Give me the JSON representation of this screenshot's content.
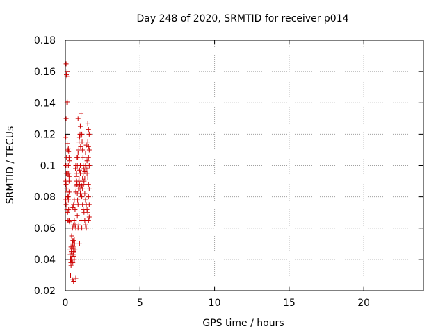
{
  "chart_data": {
    "type": "scatter",
    "title": "Day 248 of 2020, SRMTID for receiver p014",
    "xlabel": "GPS time / hours",
    "ylabel": "SRMTID / TECUs",
    "xlim": [
      0,
      24
    ],
    "ylim": [
      0.02,
      0.18
    ],
    "xticks": [
      0,
      5,
      10,
      15,
      20
    ],
    "xtick_labels": [
      "0",
      "5",
      "10",
      "15",
      "20"
    ],
    "yticks": [
      0.02,
      0.04,
      0.06,
      0.08,
      0.1,
      0.12,
      0.14,
      0.16,
      0.18
    ],
    "ytick_labels": [
      "0.02",
      "0.04",
      "0.06",
      "0.08",
      "0.1",
      "0.12",
      "0.14",
      "0.16",
      "0.18"
    ],
    "grid": true,
    "marker": "+",
    "series": [
      {
        "name": "p014",
        "color": "#cc0000",
        "points": [
          [
            0.05,
            0.165
          ],
          [
            0.07,
            0.158
          ],
          [
            0.1,
            0.157
          ],
          [
            0.11,
            0.16
          ],
          [
            0.12,
            0.141
          ],
          [
            0.1,
            0.14
          ],
          [
            0.14,
            0.14
          ],
          [
            0.05,
            0.13
          ],
          [
            0.03,
            0.118
          ],
          [
            0.08,
            0.105
          ],
          [
            0.12,
            0.114
          ],
          [
            0.14,
            0.11
          ],
          [
            0.2,
            0.111
          ],
          [
            0.22,
            0.109
          ],
          [
            0.25,
            0.105
          ],
          [
            0.28,
            0.103
          ],
          [
            0.04,
            0.1
          ],
          [
            0.06,
            0.095
          ],
          [
            0.1,
            0.095
          ],
          [
            0.15,
            0.095
          ],
          [
            0.2,
            0.1
          ],
          [
            0.22,
            0.095
          ],
          [
            0.25,
            0.093
          ],
          [
            0.03,
            0.09
          ],
          [
            0.05,
            0.088
          ],
          [
            0.08,
            0.085
          ],
          [
            0.12,
            0.083
          ],
          [
            0.15,
            0.08
          ],
          [
            0.2,
            0.08
          ],
          [
            0.25,
            0.09
          ],
          [
            0.03,
            0.078
          ],
          [
            0.05,
            0.075
          ],
          [
            0.1,
            0.072
          ],
          [
            0.12,
            0.07
          ],
          [
            0.15,
            0.07
          ],
          [
            0.2,
            0.078
          ],
          [
            0.25,
            0.083
          ],
          [
            0.22,
            0.072
          ],
          [
            0.18,
            0.065
          ],
          [
            0.25,
            0.065
          ],
          [
            0.28,
            0.064
          ],
          [
            0.3,
            0.046
          ],
          [
            0.32,
            0.043
          ],
          [
            0.35,
            0.04
          ],
          [
            0.37,
            0.038
          ],
          [
            0.38,
            0.036
          ],
          [
            0.4,
            0.04
          ],
          [
            0.42,
            0.044
          ],
          [
            0.45,
            0.047
          ],
          [
            0.48,
            0.05
          ],
          [
            0.5,
            0.052
          ],
          [
            0.52,
            0.048
          ],
          [
            0.55,
            0.045
          ],
          [
            0.58,
            0.042
          ],
          [
            0.6,
            0.04
          ],
          [
            0.45,
            0.042
          ],
          [
            0.4,
            0.045
          ],
          [
            0.38,
            0.048
          ],
          [
            0.5,
            0.038
          ],
          [
            0.52,
            0.043
          ],
          [
            0.55,
            0.052
          ],
          [
            0.6,
            0.053
          ],
          [
            0.62,
            0.05
          ],
          [
            0.65,
            0.046
          ],
          [
            0.42,
            0.055
          ],
          [
            0.48,
            0.06
          ],
          [
            0.55,
            0.062
          ],
          [
            0.6,
            0.065
          ],
          [
            0.65,
            0.062
          ],
          [
            0.7,
            0.06
          ],
          [
            0.35,
            0.03
          ],
          [
            0.5,
            0.027
          ],
          [
            0.55,
            0.026
          ],
          [
            0.7,
            0.028
          ],
          [
            0.5,
            0.073
          ],
          [
            0.55,
            0.075
          ],
          [
            0.6,
            0.078
          ],
          [
            0.65,
            0.072
          ],
          [
            0.7,
            0.083
          ],
          [
            0.72,
            0.087
          ],
          [
            0.75,
            0.09
          ],
          [
            0.78,
            0.088
          ],
          [
            0.8,
            0.082
          ],
          [
            0.82,
            0.078
          ],
          [
            0.85,
            0.075
          ],
          [
            0.88,
            0.085
          ],
          [
            0.9,
            0.09
          ],
          [
            0.92,
            0.092
          ],
          [
            0.95,
            0.088
          ],
          [
            0.98,
            0.085
          ],
          [
            1.0,
            0.082
          ],
          [
            0.75,
            0.095
          ],
          [
            0.8,
            0.1
          ],
          [
            0.82,
            0.105
          ],
          [
            0.85,
            0.108
          ],
          [
            0.9,
            0.11
          ],
          [
            0.92,
            0.115
          ],
          [
            0.95,
            0.118
          ],
          [
            0.98,
            0.12
          ],
          [
            1.0,
            0.125
          ],
          [
            1.02,
            0.112
          ],
          [
            1.05,
            0.11
          ],
          [
            0.85,
            0.13
          ],
          [
            1.05,
            0.133
          ],
          [
            1.1,
            0.12
          ],
          [
            1.12,
            0.115
          ],
          [
            1.15,
            0.11
          ],
          [
            1.18,
            0.105
          ],
          [
            1.2,
            0.1
          ],
          [
            0.95,
            0.097
          ],
          [
            1.0,
            0.095
          ],
          [
            1.05,
            0.09
          ],
          [
            1.1,
            0.087
          ],
          [
            1.15,
            0.085
          ],
          [
            1.2,
            0.088
          ],
          [
            1.25,
            0.09
          ],
          [
            1.3,
            0.092
          ],
          [
            1.1,
            0.08
          ],
          [
            1.15,
            0.075
          ],
          [
            1.2,
            0.072
          ],
          [
            1.25,
            0.07
          ],
          [
            1.05,
            0.065
          ],
          [
            1.1,
            0.06
          ],
          [
            0.9,
            0.062
          ],
          [
            0.85,
            0.06
          ],
          [
            0.95,
            0.05
          ],
          [
            0.8,
            0.068
          ],
          [
            1.3,
            0.096
          ],
          [
            1.35,
            0.1
          ],
          [
            1.4,
            0.098
          ],
          [
            1.45,
            0.095
          ],
          [
            1.5,
            0.092
          ],
          [
            1.55,
            0.088
          ],
          [
            1.6,
            0.085
          ],
          [
            1.3,
            0.082
          ],
          [
            1.35,
            0.078
          ],
          [
            1.4,
            0.075
          ],
          [
            1.45,
            0.072
          ],
          [
            1.5,
            0.07
          ],
          [
            1.3,
            0.065
          ],
          [
            1.35,
            0.062
          ],
          [
            1.4,
            0.06
          ],
          [
            1.55,
            0.065
          ],
          [
            1.6,
            0.067
          ],
          [
            1.5,
            0.127
          ],
          [
            1.55,
            0.123
          ],
          [
            1.6,
            0.12
          ],
          [
            1.5,
            0.115
          ],
          [
            1.55,
            0.112
          ],
          [
            1.6,
            0.11
          ],
          [
            1.55,
            0.105
          ],
          [
            1.6,
            0.1
          ],
          [
            1.45,
            0.103
          ],
          [
            1.5,
            0.098
          ],
          [
            1.6,
            0.075
          ],
          [
            1.55,
            0.08
          ],
          [
            1.2,
            0.095
          ],
          [
            1.25,
            0.098
          ],
          [
            1.15,
            0.092
          ],
          [
            1.0,
            0.1
          ],
          [
            1.35,
            0.108
          ],
          [
            1.4,
            0.113
          ],
          [
            0.7,
            0.1
          ],
          [
            0.75,
            0.105
          ],
          [
            0.72,
            0.093
          ],
          [
            0.68,
            0.098
          ]
        ]
      }
    ]
  }
}
